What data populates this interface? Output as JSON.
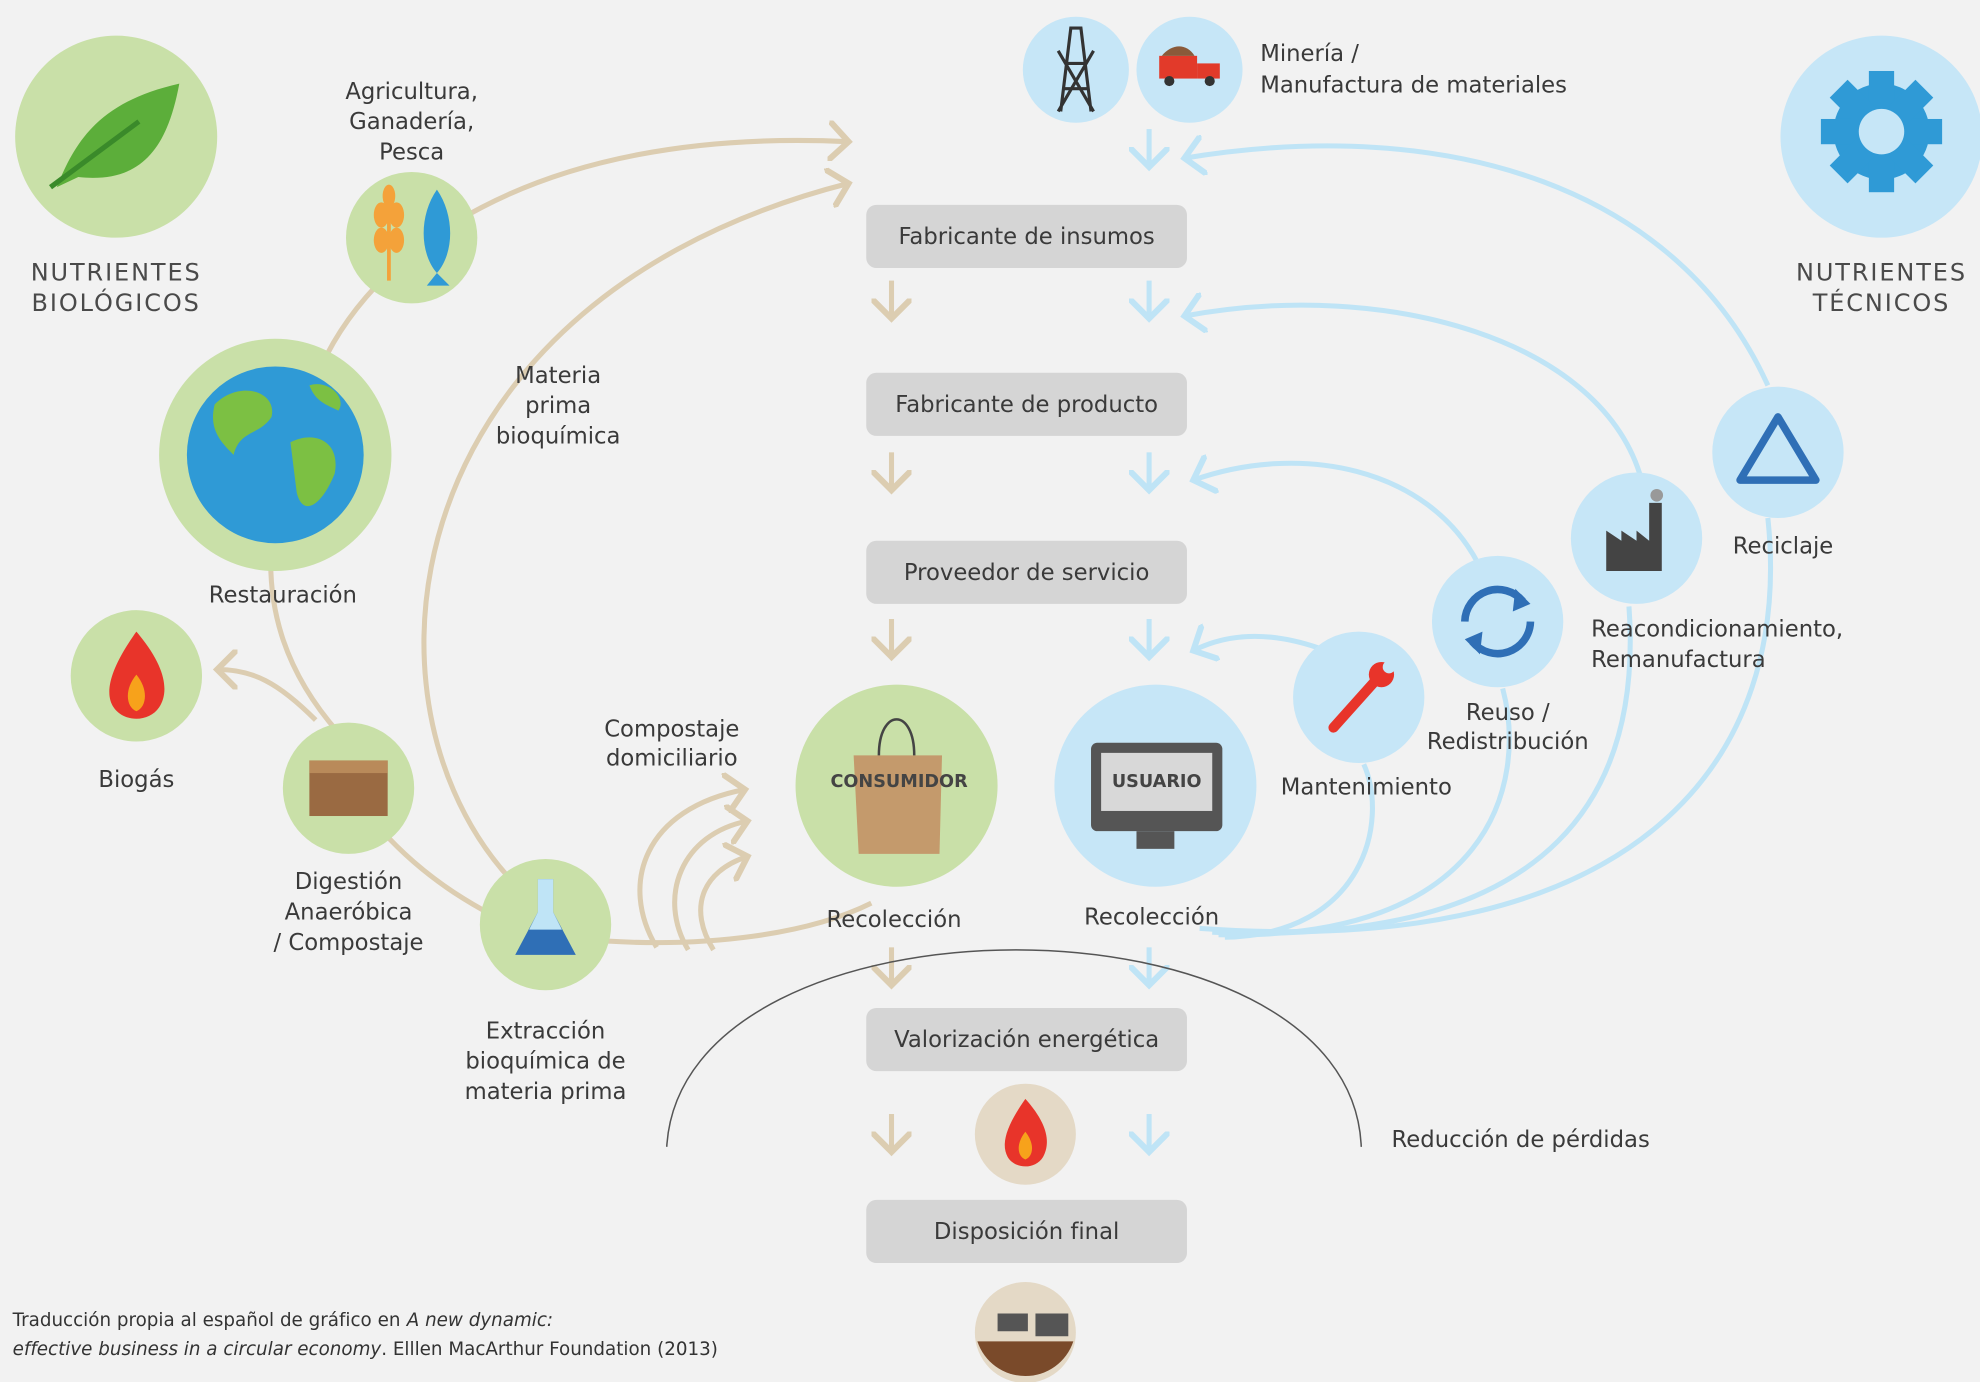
{
  "sections": {
    "biological": [
      "NUTRIENTES",
      "BIOLÓGICOS"
    ],
    "technical": [
      "NUTRIENTES",
      "TÉCNICOS"
    ]
  },
  "mining": [
    "Minería /",
    "Manufactura de materiales"
  ],
  "stages": [
    "Fabricante de insumos",
    "Fabricante de producto",
    "Proveedor de servicio",
    "Valorización energética",
    "Disposición final"
  ],
  "consumer": "CONSUMIDOR",
  "user": "USUARIO",
  "collection": [
    "Recolección",
    "Recolección"
  ],
  "biological": {
    "agriculture": [
      "Agricultura,",
      "Ganadería,",
      "Pesca"
    ],
    "feedstock": [
      "Materia",
      "prima",
      "bioquímica"
    ],
    "restoration": "Restauración",
    "biogas": "Biogás",
    "digestion": [
      "Digestión",
      "Anaeróbica",
      "/ Compostaje"
    ],
    "extraction": [
      "Extracción",
      "bioquímica de",
      "materia prima"
    ],
    "composting": [
      "Compostaje",
      "domiciliario"
    ]
  },
  "technical": {
    "maintenance": "Mantenimiento",
    "reuse": [
      "Reuso /",
      "Redistribución"
    ],
    "refurbish": [
      "Reacondicionamiento,",
      "Remanufactura"
    ],
    "recycling": "Reciclaje"
  },
  "leakage": "Reducción de pérdidas",
  "footer": {
    "line1": [
      "Traducción propia al español de gráfico en",
      "A new dynamic:"
    ],
    "line2": [
      "effective business in a circular economy",
      ". Elllen MacArthur Foundation (2013)"
    ]
  }
}
